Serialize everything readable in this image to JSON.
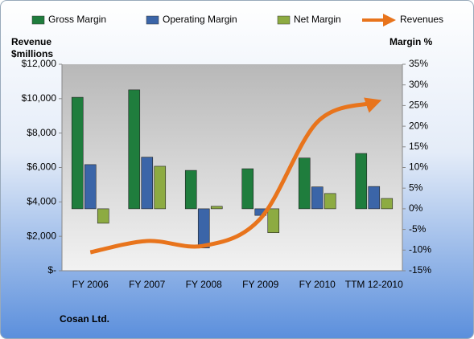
{
  "chart_data": {
    "type": "bar",
    "title": "Cosan Ltd.",
    "y_label": "Revenue $millions",
    "y2_label": "Margin %",
    "categories": [
      "FY 2006",
      "FY 2007",
      "FY 2008",
      "FY 2009",
      "FY 2010",
      "TTM 12-2010"
    ],
    "series": [
      {
        "name": "Gross Margin",
        "color": "#1f7d3d",
        "axis": "y2",
        "values": [
          27,
          28.8,
          9.3,
          9.7,
          12.3,
          13.4
        ]
      },
      {
        "name": "Operating Margin",
        "color": "#3b65a8",
        "axis": "y2",
        "values": [
          10.7,
          12.5,
          -9.5,
          -1.6,
          5.3,
          5.4
        ]
      },
      {
        "name": "Net Margin",
        "color": "#8dab42",
        "axis": "y2",
        "values": [
          -3.5,
          10.3,
          0.6,
          -5.8,
          3.7,
          2.5
        ]
      },
      {
        "name": "Revenues",
        "type": "line",
        "color": "#e8741c",
        "axis": "y",
        "values": [
          1070,
          1730,
          1450,
          3040,
          8640,
          9770
        ]
      }
    ],
    "ylim": [
      0,
      12000
    ],
    "yticks": [
      {
        "value": 0,
        "label": "$-"
      },
      {
        "value": 2000,
        "label": "$2,000"
      },
      {
        "value": 4000,
        "label": "$4,000"
      },
      {
        "value": 6000,
        "label": "$6,000"
      },
      {
        "value": 8000,
        "label": "$8,000"
      },
      {
        "value": 10000,
        "label": "$10,000"
      },
      {
        "value": 12000,
        "label": "$12,000"
      }
    ],
    "y2lim": [
      -15,
      35
    ],
    "y2ticks": [
      {
        "value": -15,
        "label": "-15%"
      },
      {
        "value": -10,
        "label": "-10%"
      },
      {
        "value": -5,
        "label": "-5%"
      },
      {
        "value": 0,
        "label": "0%"
      },
      {
        "value": 5,
        "label": "5%"
      },
      {
        "value": 10,
        "label": "10%"
      },
      {
        "value": 15,
        "label": "15%"
      },
      {
        "value": 20,
        "label": "20%"
      },
      {
        "value": 25,
        "label": "25%"
      },
      {
        "value": 30,
        "label": "30%"
      },
      {
        "value": 35,
        "label": "35%"
      }
    ],
    "grid": false,
    "legend": "top"
  }
}
